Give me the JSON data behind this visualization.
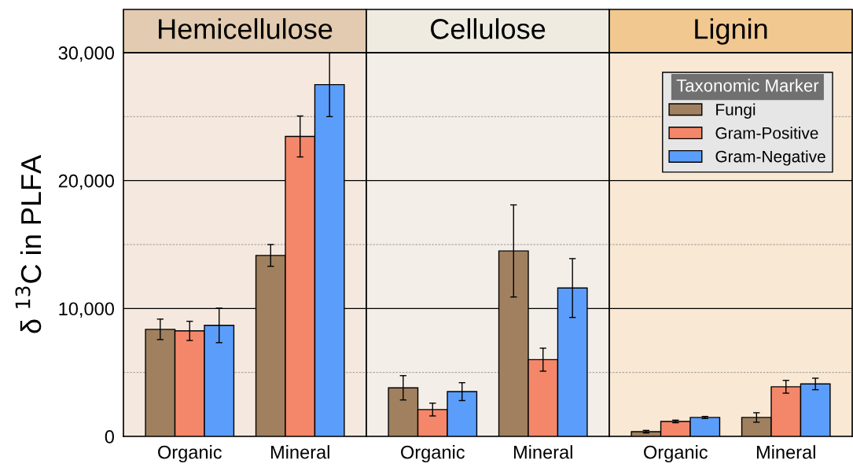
{
  "chart_data": [
    {
      "type": "bar",
      "title": "Hemicellulose",
      "ylabel": "δ $^{13}$C in PLFA",
      "categories": [
        "Organic",
        "Mineral"
      ],
      "series": [
        {
          "color": "#a0805f",
          "values": [
            8370,
            14150
          ],
          "errors": [
            800,
            850
          ]
        },
        {
          "color": "#f4876a",
          "values": [
            8250,
            23450
          ],
          "errors": [
            750,
            1600
          ]
        },
        {
          "color": "#5b9dfa",
          "values": [
            8680,
            27500
          ],
          "errors": [
            1350,
            2500
          ]
        }
      ],
      "ylim": [
        0,
        30000
      ],
      "yticks": [
        0,
        {
          "value": 5000,
          "label": null
        },
        {
          "value": 10000,
          "label": "10,000"
        },
        {
          "value": 15000,
          "label": null
        },
        {
          "value": 20000,
          "label": "20,000"
        },
        {
          "value": 25000,
          "label": null
        },
        {
          "value": 30000,
          "label": "30,000"
        }
      ],
      "grid": "y"
    },
    {
      "type": "bar",
      "title": "Cellulose",
      "categories": [
        "Organic",
        "Mineral"
      ],
      "series": [
        {
          "color": "#a0805f",
          "values": [
            3800,
            14500
          ],
          "errors": [
            950,
            3600
          ]
        },
        {
          "color": "#f4876a",
          "values": [
            2100,
            6000
          ],
          "errors": [
            500,
            900
          ]
        },
        {
          "color": "#5b9dfa",
          "values": [
            3500,
            11600
          ],
          "errors": [
            700,
            2300
          ]
        }
      ],
      "ylim": [
        0,
        30000
      ],
      "yticks": [
        0,
        {
          "value": 5000,
          "label": null
        },
        10000,
        {
          "value": 15000,
          "label": null
        },
        20000,
        {
          "value": 25000,
          "label": null
        },
        30000
      ],
      "grid": "y",
      "tick_labels": "x"
    },
    {
      "type": "bar",
      "title": "Lignin",
      "legend_title": "Taxonomic Marker",
      "categories": [
        "Organic",
        "Mineral"
      ],
      "series": [
        {
          "name": "Fungi",
          "color": "#a0805f",
          "values": [
            370,
            1480
          ],
          "errors": [
            100,
            370
          ]
        },
        {
          "name": "Gram-Positive",
          "color": "#f4876a",
          "values": [
            1170,
            3880
          ],
          "errors": [
            100,
            500
          ]
        },
        {
          "name": "Gram-Negative",
          "color": "#5b9dfa",
          "values": [
            1480,
            4100
          ],
          "errors": [
            80,
            450
          ]
        }
      ],
      "ylim": [
        0,
        30000
      ],
      "yticks": [
        0,
        {
          "value": 5000,
          "label": null
        },
        10000,
        {
          "value": 15000,
          "label": null
        },
        20000,
        {
          "value": 25000,
          "label": null
        },
        30000
      ],
      "grid": "y",
      "legend": "top right",
      "tick_labels": "x"
    }
  ]
}
